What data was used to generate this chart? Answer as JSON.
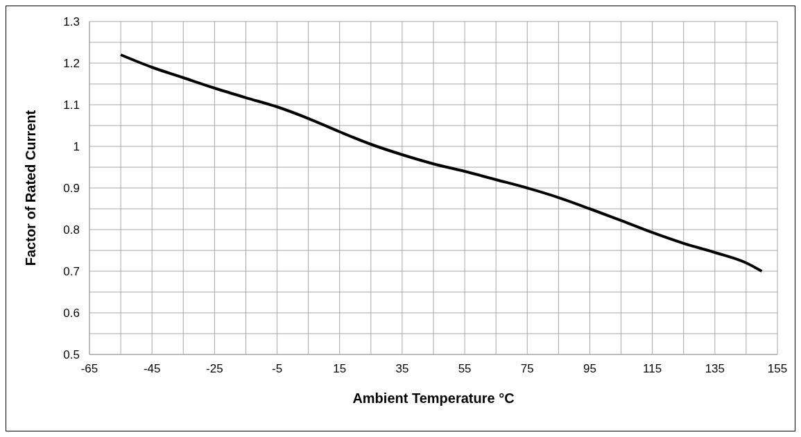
{
  "chart_data": {
    "type": "line",
    "xlabel": "Ambient Temperature °C",
    "ylabel": "Factor of Rated Current",
    "x": [
      -55,
      -45,
      -35,
      -25,
      -15,
      -5,
      5,
      15,
      25,
      35,
      45,
      55,
      65,
      75,
      85,
      95,
      105,
      115,
      125,
      135,
      145,
      150
    ],
    "series": [
      {
        "color": "#000000",
        "values": [
          1.22,
          1.19,
          1.165,
          1.14,
          1.117,
          1.095,
          1.067,
          1.035,
          1.005,
          0.98,
          0.958,
          0.94,
          0.92,
          0.9,
          0.877,
          0.85,
          0.822,
          0.793,
          0.767,
          0.745,
          0.72,
          0.7
        ]
      }
    ],
    "xlim": [
      -65,
      155
    ],
    "xticks": [
      -65,
      {
        "value": -55,
        "label": null
      },
      -45,
      {
        "value": -35,
        "label": null
      },
      -25,
      {
        "value": -15,
        "label": null
      },
      -5,
      {
        "value": 5,
        "label": null
      },
      15,
      {
        "value": 25,
        "label": null
      },
      35,
      {
        "value": 45,
        "label": null
      },
      55,
      {
        "value": 65,
        "label": null
      },
      75,
      {
        "value": 85,
        "label": null
      },
      95,
      {
        "value": 105,
        "label": null
      },
      115,
      {
        "value": 125,
        "label": null
      },
      135,
      {
        "value": 145,
        "label": null
      },
      155
    ],
    "ylim": [
      0.5,
      1.3
    ],
    "yticks": [
      0.5,
      {
        "value": 0.55,
        "label": null
      },
      0.6,
      {
        "value": 0.65,
        "label": null
      },
      0.7,
      {
        "value": 0.75,
        "label": null
      },
      0.8,
      {
        "value": 0.85,
        "label": null
      },
      0.9,
      {
        "value": 0.95,
        "label": null
      },
      1,
      {
        "value": 1.05,
        "label": null
      },
      1.1,
      {
        "value": 1.15,
        "label": null
      },
      1.2,
      {
        "value": 1.25,
        "label": null
      },
      1.3
    ],
    "grid": true,
    "marker": "none",
    "line_style": "solid"
  }
}
